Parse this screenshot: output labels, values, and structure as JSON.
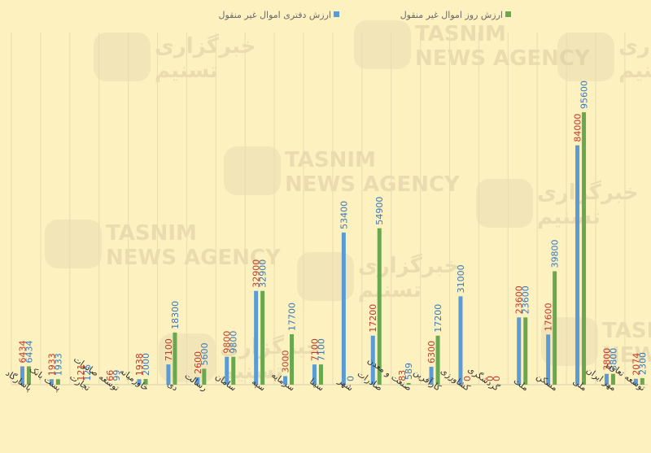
{
  "chart_data": {
    "type": "bar",
    "series": [
      {
        "name": "ارزش دفتری اموال غیر منقول",
        "color": "#5b9bd5",
        "values": [
          6434,
          1933,
          121,
          66,
          1938,
          7100,
          2600,
          9800,
          32900,
          3000,
          7100,
          53400,
          17200,
          83,
          6300,
          31000,
          0,
          23600,
          17600,
          84000,
          3800,
          2074
        ],
        "labels": [
          "6434",
          "1933",
          "121",
          "66",
          "1938",
          "7100",
          "2600",
          "9800",
          "32900",
          "3000",
          "7100",
          "53400",
          "17200",
          "83",
          "6300",
          "31000",
          "0",
          "23600",
          "17600",
          "84000",
          "3800",
          "2074"
        ],
        "label_colors": [
          "#c0392b",
          "#c0392b",
          "#c0392b",
          "#c0392b",
          "#c0392b",
          "#c0392b",
          "#c0392b",
          "#c0392b",
          "#c0392b",
          "#c0392b",
          "#c0392b",
          "#3a78b8",
          "#c0392b",
          "#c0392b",
          "#c0392b",
          "#3a78b8",
          "#c0392b",
          "#c0392b",
          "#c0392b",
          "#c0392b",
          "#c0392b",
          "#c0392b"
        ]
      },
      {
        "name": "ارزش روز اموال غیر منقول",
        "color": "#6aa84f",
        "values": [
          6434,
          1933,
          125,
          99,
          2000,
          18300,
          5600,
          9800,
          32900,
          17700,
          7100,
          0,
          54900,
          589,
          17200,
          0,
          0,
          23600,
          39800,
          95600,
          3800,
          2300
        ],
        "labels": [
          "6434",
          "1933",
          "125",
          "99",
          "2000",
          "18300",
          "5600",
          "9800",
          "32900",
          "17700",
          "7100",
          "0",
          "54900",
          "589",
          "17200",
          "0",
          "0",
          "23600",
          "39800",
          "95600",
          "3800",
          "2300"
        ],
        "label_colors": [
          "#3a78b8",
          "#3a78b8",
          "#3a78b8",
          "#3a78b8",
          "#3a78b8",
          "#3a78b8",
          "#3a78b8",
          "#3a78b8",
          "#3a78b8",
          "#3a78b8",
          "#3a78b8",
          "#3a78b8",
          "#3a78b8",
          "#3a78b8",
          "#3a78b8",
          "#c0392b",
          "#c0392b",
          "#3a78b8",
          "#3a78b8",
          "#3a78b8",
          "#3a78b8",
          "#3a78b8"
        ]
      }
    ],
    "categories": [
      "پاسارگاد",
      "پست بانک",
      "تجارت",
      "توسعه صادرات",
      "خاورمیانه",
      "دی",
      "رسالت",
      "سامان",
      "سپه",
      "سرمایه",
      "سینا",
      "شهر",
      "صادرات",
      "صنعت و معدن",
      "کارآفرین",
      "کشاورزی",
      "گردشگری",
      "ملت",
      "مسکن",
      "ملی",
      "مهر ایران",
      "توسعه تعاون"
    ],
    "legend_position": "top",
    "grid": "vertical",
    "background": "#fdf1c0"
  },
  "watermark": {
    "brand_fa_1": "خبرگزاری",
    "brand_fa_2": "تسنیم",
    "brand_en_1": "TASNIM",
    "brand_en_2": "NEWS AGENCY"
  }
}
